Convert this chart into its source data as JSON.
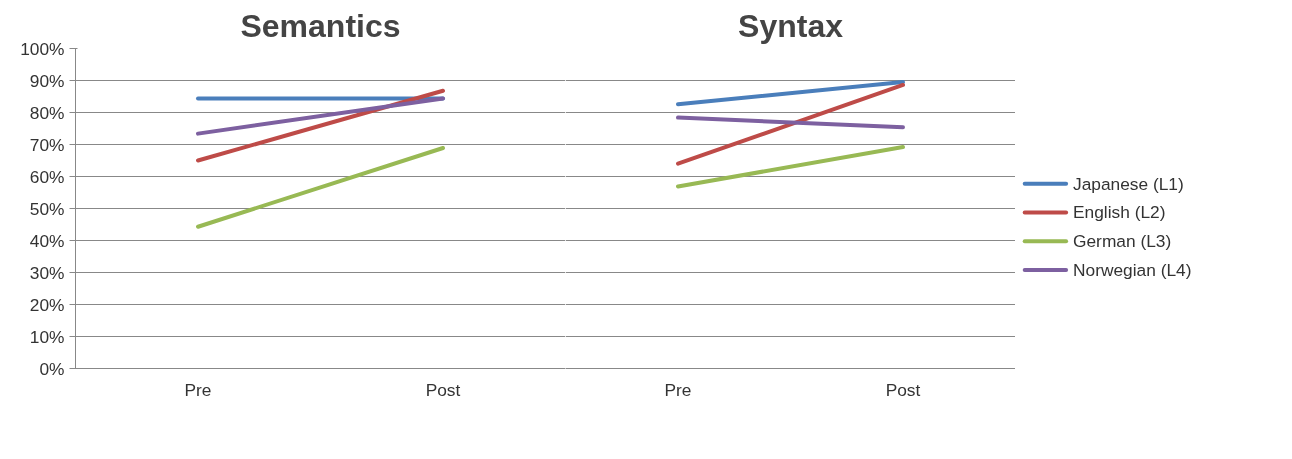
{
  "chart_data": [
    {
      "type": "line",
      "title": "Semantics",
      "categories": [
        "Pre",
        "Post"
      ],
      "ylim": [
        0,
        100
      ],
      "yticks": [
        {
          "value": 0,
          "label": "0%"
        },
        {
          "value": 10,
          "label": "10%"
        },
        {
          "value": 20,
          "label": "20%"
        },
        {
          "value": 30,
          "label": "30%"
        },
        {
          "value": 40,
          "label": "40%"
        },
        {
          "value": 50,
          "label": "50%"
        },
        {
          "value": 60,
          "label": "60%"
        },
        {
          "value": 70,
          "label": "70%"
        },
        {
          "value": 80,
          "label": "80%"
        },
        {
          "value": 90,
          "label": "90%"
        },
        {
          "value": 100,
          "label": "100%"
        }
      ],
      "grid": "y",
      "marker": "none",
      "series": [
        {
          "color": "#4a7ebb",
          "values": [
            84.4,
            84.4
          ]
        },
        {
          "color": "#be4b48",
          "values": [
            65,
            86.8
          ]
        },
        {
          "color": "#98b954",
          "values": [
            44.3,
            68.9
          ]
        },
        {
          "color": "#7d60a0",
          "values": [
            73.4,
            84.4
          ]
        }
      ]
    },
    {
      "type": "line",
      "title": "Syntax",
      "categories": [
        "Pre",
        "Post"
      ],
      "ylim": [
        0,
        100
      ],
      "yticks": [
        0,
        10,
        20,
        30,
        40,
        50,
        60,
        70,
        80,
        90,
        100
      ],
      "grid": "y",
      "marker": "none",
      "tick_labels": "x",
      "legend": "right",
      "series": [
        {
          "name": "Japanese (L1)",
          "color": "#4a7ebb",
          "values": [
            82.6,
            89.5
          ]
        },
        {
          "name": "English (L2)",
          "color": "#be4b48",
          "values": [
            64,
            88.6
          ]
        },
        {
          "name": "German (L3)",
          "color": "#98b954",
          "values": [
            56.9,
            69.2
          ]
        },
        {
          "name": "Norwegian (L4)",
          "color": "#7d60a0",
          "values": [
            78.4,
            75.4
          ]
        }
      ]
    }
  ]
}
